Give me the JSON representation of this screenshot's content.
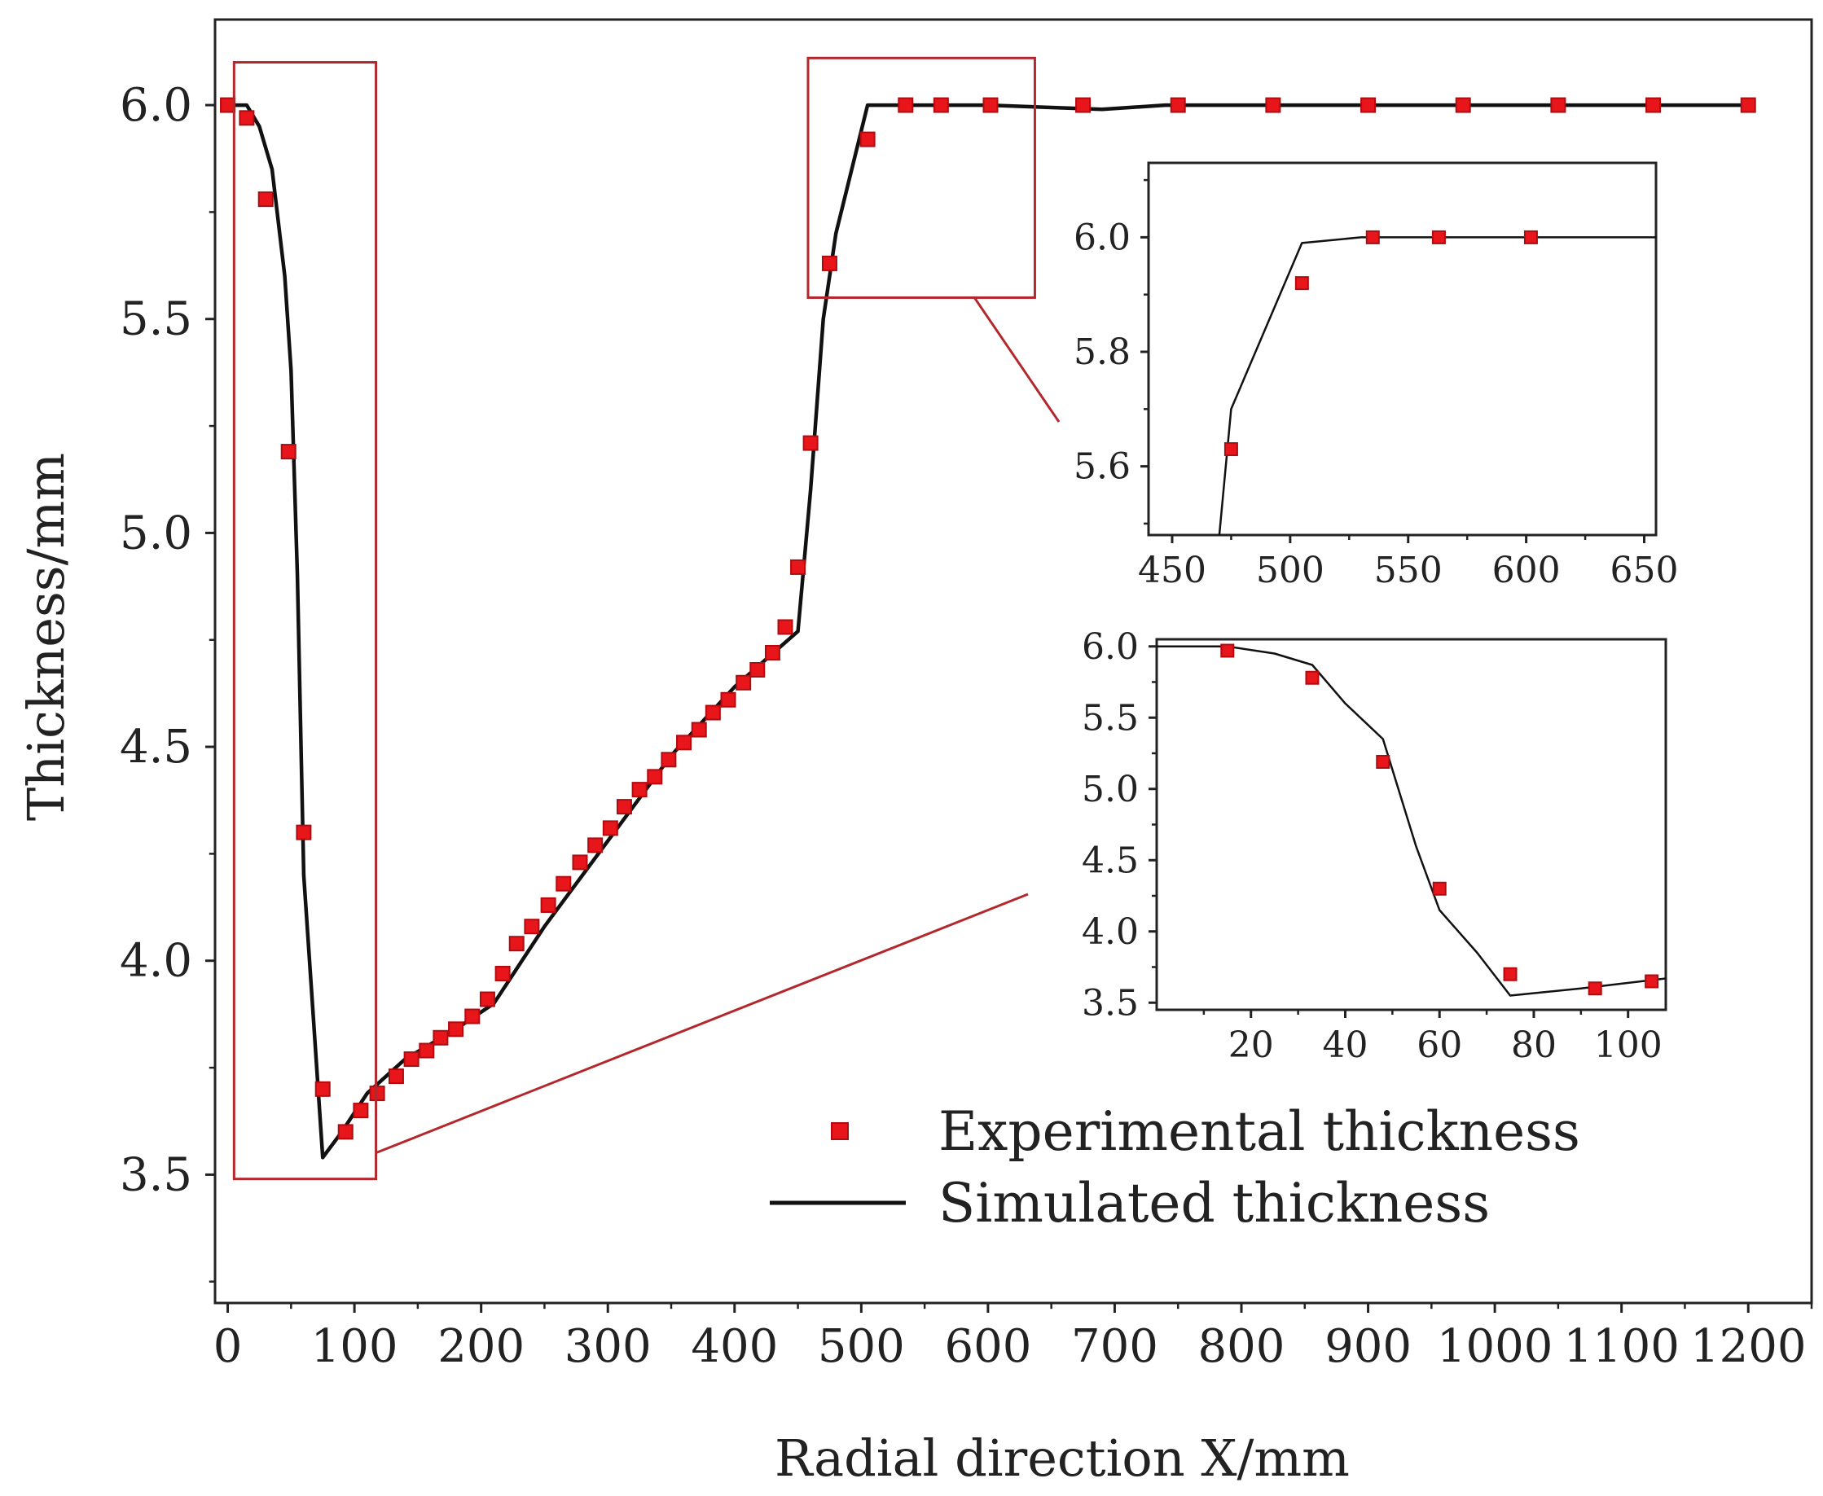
{
  "chart_data": [
    {
      "id": "main",
      "type": "line+scatter",
      "title": "",
      "xlabel": "Radial direction X/mm",
      "ylabel": "Thickness/mm",
      "xlim": [
        -10,
        1250
      ],
      "ylim": [
        3.2,
        6.2
      ],
      "xticks": [
        0,
        100,
        200,
        300,
        400,
        500,
        600,
        700,
        800,
        900,
        1000,
        1100,
        1200
      ],
      "xtick_labels": [
        "0",
        "100",
        "200",
        "300",
        "400",
        "500",
        "600",
        "700",
        "800",
        "900",
        "1000",
        "1100",
        "1200"
      ],
      "yticks": [
        3.5,
        4.0,
        4.5,
        5.0,
        5.5,
        6.0
      ],
      "ytick_labels": [
        "3.5",
        "4.0",
        "4.5",
        "5.0",
        "5.5",
        "6.0"
      ],
      "grid": false,
      "legend_position": "bottom-right",
      "series": [
        {
          "name": "Experimental thickness",
          "style": "square-markers",
          "color": "#e8161b",
          "x": [
            0,
            15,
            30,
            48,
            60,
            75,
            93,
            105,
            118,
            133,
            145,
            157,
            168,
            180,
            193,
            205,
            217,
            228,
            240,
            253,
            265,
            278,
            290,
            302,
            313,
            325,
            337,
            348,
            360,
            372,
            383,
            395,
            407,
            418,
            430,
            440,
            450,
            460,
            475,
            505,
            535,
            563,
            602,
            675,
            750,
            825,
            900,
            975,
            1050,
            1125,
            1200
          ],
          "y": [
            6.0,
            5.97,
            5.78,
            5.19,
            4.3,
            3.7,
            3.6,
            3.65,
            3.69,
            3.73,
            3.77,
            3.79,
            3.82,
            3.84,
            3.87,
            3.91,
            3.97,
            4.04,
            4.08,
            4.13,
            4.18,
            4.23,
            4.27,
            4.31,
            4.36,
            4.4,
            4.43,
            4.47,
            4.51,
            4.54,
            4.58,
            4.61,
            4.65,
            4.68,
            4.72,
            4.78,
            4.92,
            5.21,
            5.63,
            5.92,
            6.0,
            6.0,
            6.0,
            6.0,
            6.0,
            6.0,
            6.0,
            6.0,
            6.0,
            6.0,
            6.0
          ]
        },
        {
          "name": "Simulated thickness",
          "style": "line",
          "color": "#111111",
          "x": [
            0,
            15,
            25,
            35,
            45,
            50,
            55,
            60,
            68,
            75,
            90,
            110,
            140,
            180,
            210,
            250,
            300,
            350,
            400,
            450,
            460,
            470,
            480,
            505,
            530,
            600,
            690,
            740,
            800,
            1200
          ],
          "y": [
            6.0,
            6.0,
            5.95,
            5.85,
            5.6,
            5.38,
            4.9,
            4.2,
            3.85,
            3.54,
            3.6,
            3.69,
            3.77,
            3.84,
            3.9,
            4.08,
            4.28,
            4.48,
            4.64,
            4.77,
            5.1,
            5.5,
            5.7,
            6.0,
            6.0,
            6.0,
            5.99,
            6.0,
            6.0,
            6.0
          ]
        }
      ],
      "annotations": [
        {
          "type": "zoom-box",
          "x_range": [
            5,
            117
          ],
          "y_range": [
            3.49,
            6.1
          ]
        },
        {
          "type": "zoom-box",
          "x_range": [
            458,
            637
          ],
          "y_range": [
            5.55,
            6.11
          ]
        }
      ]
    },
    {
      "id": "inset-top",
      "type": "line+scatter",
      "title": "",
      "xlim": [
        440,
        655
      ],
      "ylim": [
        5.48,
        6.13
      ],
      "xticks": [
        450,
        500,
        550,
        600,
        650
      ],
      "xtick_labels": [
        "450",
        "500",
        "550",
        "600",
        "650"
      ],
      "yticks": [
        5.6,
        5.8,
        6.0
      ],
      "ytick_labels": [
        "5.6",
        "5.8",
        "6.0"
      ],
      "series": [
        {
          "name": "Experimental thickness",
          "style": "square-markers",
          "color": "#e8161b",
          "x": [
            475,
            505,
            535,
            563,
            602
          ],
          "y": [
            5.63,
            5.92,
            6.0,
            6.0,
            6.0
          ]
        },
        {
          "name": "Simulated thickness",
          "style": "line",
          "color": "#111111",
          "x": [
            470,
            475,
            505,
            530,
            655
          ],
          "y": [
            5.48,
            5.7,
            5.99,
            6.0,
            6.0
          ]
        }
      ]
    },
    {
      "id": "inset-bottom",
      "type": "line+scatter",
      "title": "",
      "xlim": [
        0,
        108
      ],
      "ylim": [
        3.45,
        6.05
      ],
      "xticks": [
        20,
        40,
        60,
        80,
        100
      ],
      "xtick_labels": [
        "20",
        "40",
        "60",
        "80",
        "100"
      ],
      "yticks": [
        3.5,
        4.0,
        4.5,
        5.0,
        5.5,
        6.0
      ],
      "ytick_labels": [
        "3.5",
        "4.0",
        "4.5",
        "5.0",
        "5.5",
        "6.0"
      ],
      "series": [
        {
          "name": "Experimental thickness",
          "style": "square-markers",
          "color": "#e8161b",
          "x": [
            15,
            33,
            48,
            60,
            75,
            93,
            105
          ],
          "y": [
            5.97,
            5.78,
            5.19,
            4.3,
            3.7,
            3.6,
            3.65
          ]
        },
        {
          "name": "Simulated thickness",
          "style": "line",
          "color": "#111111",
          "x": [
            0,
            15,
            25,
            33,
            40,
            48,
            55,
            60,
            68,
            75,
            90,
            108
          ],
          "y": [
            6.0,
            6.0,
            5.95,
            5.87,
            5.6,
            5.35,
            4.6,
            4.15,
            3.85,
            3.55,
            3.6,
            3.67
          ]
        }
      ]
    }
  ],
  "colors": {
    "marker": "#e8161b",
    "marker_edge": "#b00c10",
    "line": "#111111",
    "zoom_box": "#b3282d",
    "axis": "#222222"
  }
}
